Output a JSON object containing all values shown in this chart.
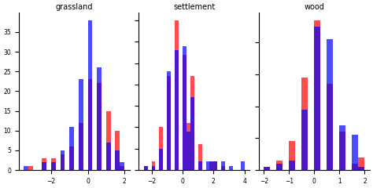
{
  "titles": [
    "grassland",
    "settlement",
    "wood"
  ],
  "color1": "#ff0000",
  "color2": "#0000ff",
  "alpha": 0.7,
  "bins": 15,
  "figsize": [
    4.74,
    2.4
  ],
  "dpi": 100,
  "grassland": {
    "red": [
      -3.1,
      -2.5,
      -2.5,
      -2.3,
      -2.0,
      -2.0,
      -1.8,
      -1.5,
      -1.5,
      -1.5,
      -1.3,
      -1.0,
      -1.0,
      -1.0,
      -0.8,
      -0.8,
      -0.8,
      -0.5,
      -0.5,
      -0.5,
      -0.5,
      -0.5,
      -0.3,
      -0.3,
      -0.3,
      -0.3,
      -0.3,
      -0.3,
      -0.3,
      0.0,
      0.0,
      0.0,
      0.0,
      0.0,
      0.0,
      0.0,
      0.0,
      0.0,
      0.0,
      0.0,
      0.0,
      0.0,
      0.2,
      0.2,
      0.2,
      0.2,
      0.2,
      0.2,
      0.2,
      0.2,
      0.2,
      0.2,
      0.5,
      0.5,
      0.5,
      0.5,
      0.5,
      0.5,
      0.5,
      0.5,
      0.5,
      0.5,
      0.5,
      0.5,
      0.7,
      0.7,
      0.7,
      0.7,
      0.7,
      0.7,
      0.7,
      0.7,
      0.7,
      0.7,
      1.0,
      1.0,
      1.0,
      1.0,
      1.0,
      1.0,
      1.0,
      1.0,
      1.0,
      1.0,
      1.2,
      1.2,
      1.2,
      1.2,
      1.2,
      1.5,
      1.5,
      1.5,
      1.5,
      1.5,
      1.7,
      1.7,
      1.7,
      1.7,
      1.7,
      2.0
    ],
    "blue": [
      -3.5,
      -2.5,
      -2.3,
      -2.0,
      -1.8,
      -1.5,
      -1.5,
      -1.5,
      -1.3,
      -1.3,
      -1.0,
      -1.0,
      -0.8,
      -0.8,
      -0.8,
      -0.8,
      -0.8,
      -0.8,
      -0.8,
      -0.8,
      -0.8,
      -0.5,
      -0.5,
      -0.5,
      -0.5,
      -0.5,
      -0.5,
      -0.5,
      -0.5,
      -0.5,
      -0.5,
      -0.5,
      -0.5,
      -0.3,
      -0.3,
      -0.3,
      -0.3,
      -0.3,
      -0.3,
      -0.3,
      -0.3,
      -0.3,
      -0.3,
      -0.3,
      0.0,
      0.0,
      0.0,
      0.0,
      0.0,
      0.0,
      0.0,
      0.0,
      0.0,
      0.0,
      0.0,
      0.0,
      0.0,
      0.2,
      0.2,
      0.2,
      0.2,
      0.2,
      0.2,
      0.2,
      0.2,
      0.2,
      0.2,
      0.2,
      0.2,
      0.2,
      0.2,
      0.2,
      0.2,
      0.2,
      0.2,
      0.2,
      0.2,
      0.2,
      0.2,
      0.2,
      0.2,
      0.2,
      0.5,
      0.5,
      0.5,
      0.5,
      0.5,
      0.5,
      0.5,
      0.5,
      0.5,
      0.5,
      0.5,
      0.5,
      0.5,
      0.5,
      0.7,
      0.7,
      0.7,
      0.7,
      0.7,
      0.7,
      0.7,
      0.7,
      0.7,
      0.7,
      0.7,
      0.7,
      1.0,
      1.0,
      1.0,
      1.0,
      1.0,
      1.0,
      1.0,
      1.5,
      1.5,
      1.5,
      1.5,
      1.5,
      2.0,
      2.0
    ]
  },
  "settlement": {
    "red": [
      -2.5,
      -1.8,
      -1.8,
      -1.5,
      -1.5,
      -1.5,
      -1.5,
      -1.5,
      -1.3,
      -1.3,
      -1.3,
      -1.3,
      -1.3,
      -1.0,
      -1.0,
      -1.0,
      -1.0,
      -1.0,
      -1.0,
      -1.0,
      -1.0,
      -1.0,
      -1.0,
      -1.0,
      -0.8,
      -0.8,
      -0.8,
      -0.8,
      -0.8,
      -0.8,
      -0.8,
      -0.8,
      -0.8,
      -0.8,
      -0.8,
      -0.5,
      -0.5,
      -0.5,
      -0.5,
      -0.5,
      -0.5,
      -0.5,
      -0.5,
      -0.5,
      -0.5,
      -0.5,
      -0.5,
      -0.3,
      -0.3,
      -0.3,
      -0.3,
      -0.3,
      -0.3,
      -0.3,
      -0.3,
      -0.3,
      -0.3,
      -0.3,
      -0.3,
      -0.3,
      -0.3,
      -0.3,
      -0.3,
      -0.3,
      -0.3,
      -0.3,
      -0.3,
      -0.3,
      -0.3,
      -0.3,
      0.0,
      0.0,
      0.0,
      0.0,
      0.0,
      0.0,
      0.0,
      0.0,
      0.0,
      0.0,
      0.0,
      0.0,
      0.0,
      0.0,
      0.0,
      0.0,
      0.0,
      0.0,
      0.0,
      0.0,
      0.0,
      0.0,
      0.0,
      0.0,
      0.0,
      0.0,
      0.0,
      0.3,
      0.3,
      0.3,
      0.3,
      0.3,
      0.3,
      0.3,
      0.3,
      0.3,
      0.3,
      0.3,
      0.5,
      0.5,
      0.5,
      0.5,
      0.5,
      0.5,
      0.5,
      0.5,
      0.5,
      0.5,
      0.5,
      0.7,
      0.7,
      0.7,
      0.7,
      0.7,
      0.7,
      0.7,
      0.7,
      0.7,
      0.7,
      0.7,
      1.0,
      1.0,
      1.0,
      1.0,
      1.0,
      1.2,
      1.8,
      1.8,
      2.0,
      2.0,
      2.5
    ],
    "blue": [
      -2.5,
      -1.8,
      -1.5,
      -1.5,
      -1.5,
      -1.3,
      -1.3,
      -1.0,
      -1.0,
      -1.0,
      -1.0,
      -1.0,
      -1.0,
      -1.0,
      -1.0,
      -1.0,
      -1.0,
      -1.0,
      -1.0,
      -0.8,
      -0.8,
      -0.8,
      -0.8,
      -0.8,
      -0.8,
      -0.8,
      -0.8,
      -0.8,
      -0.8,
      -0.8,
      -0.5,
      -0.5,
      -0.5,
      -0.5,
      -0.5,
      -0.5,
      -0.5,
      -0.5,
      -0.5,
      -0.5,
      -0.5,
      -0.5,
      -0.5,
      -0.3,
      -0.3,
      -0.3,
      -0.3,
      -0.3,
      -0.3,
      -0.3,
      -0.3,
      -0.3,
      -0.3,
      -0.3,
      -0.3,
      -0.3,
      -0.3,
      -0.3,
      0.0,
      0.0,
      0.0,
      0.0,
      0.0,
      0.0,
      0.0,
      0.0,
      0.0,
      0.0,
      0.0,
      0.0,
      0.0,
      0.0,
      0.0,
      0.0,
      0.0,
      0.0,
      0.0,
      0.0,
      0.0,
      0.0,
      0.0,
      0.0,
      0.0,
      0.0,
      0.0,
      0.0,
      0.0,
      0.3,
      0.3,
      0.3,
      0.3,
      0.3,
      0.3,
      0.3,
      0.3,
      0.3,
      0.5,
      0.5,
      0.5,
      0.5,
      0.5,
      0.5,
      0.5,
      0.5,
      0.7,
      0.7,
      0.7,
      0.7,
      0.7,
      0.7,
      0.7,
      0.7,
      0.7,
      1.0,
      1.2,
      1.5,
      1.5,
      1.8,
      1.8,
      2.0,
      2.0,
      2.5,
      2.5,
      3.0,
      3.8,
      4.0
    ]
  },
  "wood": {
    "red": [
      -2.0,
      -1.5,
      -1.5,
      -1.3,
      -1.0,
      -1.0,
      -1.0,
      -0.8,
      -0.8,
      -0.8,
      -0.8,
      -0.8,
      -0.8,
      -0.5,
      -0.5,
      -0.5,
      -0.5,
      -0.5,
      -0.5,
      -0.5,
      -0.5,
      -0.5,
      -0.5,
      -0.5,
      -0.5,
      -0.5,
      -0.3,
      -0.3,
      -0.3,
      -0.3,
      -0.3,
      -0.3,
      -0.3,
      -0.3,
      -0.3,
      -0.3,
      -0.3,
      -0.3,
      -0.3,
      -0.3,
      -0.3,
      -0.3,
      0.0,
      0.0,
      0.0,
      0.0,
      0.0,
      0.0,
      0.0,
      0.0,
      0.0,
      0.0,
      0.0,
      0.0,
      0.0,
      0.0,
      0.0,
      0.0,
      0.0,
      0.0,
      0.0,
      0.0,
      0.0,
      0.0,
      0.0,
      0.2,
      0.2,
      0.2,
      0.2,
      0.2,
      0.2,
      0.2,
      0.2,
      0.2,
      0.2,
      0.2,
      0.2,
      0.2,
      0.2,
      0.2,
      0.2,
      0.2,
      0.2,
      0.2,
      0.2,
      0.2,
      0.2,
      0.2,
      0.2,
      0.5,
      0.5,
      0.5,
      0.5,
      0.5,
      0.5,
      0.5,
      0.5,
      0.5,
      0.5,
      0.5,
      0.5,
      0.5,
      0.5,
      0.7,
      0.7,
      0.7,
      0.7,
      0.7,
      0.7,
      0.7,
      0.7,
      0.7,
      0.7,
      0.7,
      0.7,
      0.7,
      1.0,
      1.0,
      1.0,
      1.0,
      1.0,
      1.0,
      1.0,
      1.0,
      1.2,
      1.2,
      1.2,
      1.2,
      1.5,
      1.5,
      1.8,
      1.8,
      2.0,
      2.0
    ],
    "blue": [
      -2.0,
      -1.5,
      -1.3,
      -1.0,
      -0.8,
      -0.8,
      -0.5,
      -0.5,
      -0.5,
      -0.5,
      -0.5,
      -0.5,
      -0.3,
      -0.3,
      -0.3,
      -0.3,
      -0.3,
      -0.3,
      -0.3,
      -0.3,
      -0.3,
      -0.3,
      -0.3,
      -0.3,
      -0.3,
      0.0,
      0.0,
      0.0,
      0.0,
      0.0,
      0.0,
      0.0,
      0.0,
      0.0,
      0.0,
      0.0,
      0.0,
      0.0,
      0.0,
      0.0,
      0.0,
      0.0,
      0.0,
      0.0,
      0.0,
      0.2,
      0.2,
      0.2,
      0.2,
      0.2,
      0.2,
      0.2,
      0.2,
      0.2,
      0.2,
      0.2,
      0.2,
      0.2,
      0.2,
      0.2,
      0.2,
      0.2,
      0.2,
      0.2,
      0.2,
      0.2,
      0.2,
      0.2,
      0.2,
      0.2,
      0.5,
      0.5,
      0.5,
      0.5,
      0.5,
      0.5,
      0.5,
      0.5,
      0.5,
      0.5,
      0.5,
      0.5,
      0.5,
      0.5,
      0.5,
      0.5,
      0.5,
      0.5,
      0.5,
      0.5,
      0.7,
      0.7,
      0.7,
      0.7,
      0.7,
      0.7,
      0.7,
      0.7,
      0.7,
      0.7,
      0.7,
      0.7,
      0.7,
      0.7,
      0.7,
      0.7,
      0.7,
      0.7,
      0.7,
      0.7,
      0.7,
      1.0,
      1.0,
      1.0,
      1.0,
      1.0,
      1.0,
      1.0,
      1.0,
      1.0,
      1.0,
      1.0,
      1.2,
      1.2,
      1.2,
      1.5,
      1.5,
      1.5,
      1.5,
      1.5,
      1.5,
      1.5,
      1.5,
      1.5,
      1.5,
      1.5,
      2.0
    ]
  }
}
